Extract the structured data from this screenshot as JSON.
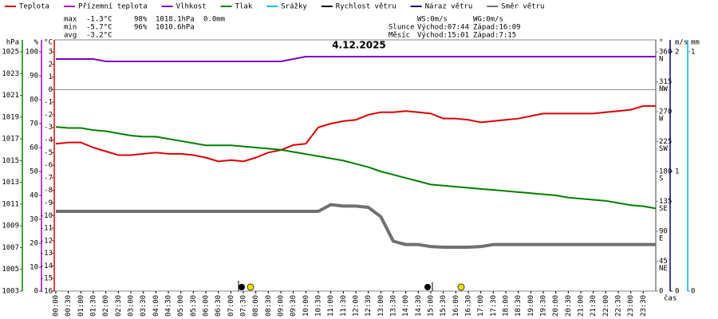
{
  "chart_data": {
    "type": "line",
    "title": "4.12.2025",
    "x_label": "čas",
    "stats": [
      {
        "label": "max",
        "temp": "-1.3°C",
        "hum": "98%",
        "pres": "1018.1hPa",
        "rain": "0.0mm"
      },
      {
        "label": "min",
        "temp": "-5.7°C",
        "hum": "96%",
        "pres": "1010.6hPa"
      },
      {
        "label": "avg",
        "temp": "-3.2°C"
      }
    ],
    "wind": {
      "ws": "WS:0m/s",
      "wg": "WG:0m/s"
    },
    "sun": {
      "label": "Slunce",
      "rise": "Východ:07:44",
      "set": "Západ:16:09"
    },
    "moon": {
      "label": "Měsíc",
      "rise": "Východ:15:01",
      "set": "Západ:7:15"
    },
    "xlim": [
      0,
      24
    ],
    "x": [
      0,
      0.5,
      1,
      1.5,
      2,
      2.5,
      3,
      3.5,
      4,
      4.5,
      5,
      5.5,
      6,
      6.5,
      7,
      7.5,
      8,
      8.5,
      9,
      9.5,
      10,
      10.5,
      11,
      11.5,
      12,
      12.5,
      13,
      13.5,
      14,
      14.5,
      15,
      15.5,
      16,
      16.5,
      17,
      17.5,
      18,
      18.5,
      19,
      19.5,
      20,
      20.5,
      21,
      21.5,
      22,
      22.5,
      23,
      23.5,
      24
    ],
    "xticks": [
      {
        "value": 0,
        "label": "00:00"
      },
      {
        "value": 0.5,
        "label": "00:30"
      },
      {
        "value": 1,
        "label": "01:00"
      },
      {
        "value": 1.5,
        "label": "01:30"
      },
      {
        "value": 2,
        "label": "02:00"
      },
      {
        "value": 2.5,
        "label": "02:30"
      },
      {
        "value": 3,
        "label": "03:00"
      },
      {
        "value": 3.5,
        "label": "03:30"
      },
      {
        "value": 4,
        "label": "04:00"
      },
      {
        "value": 4.5,
        "label": "04:30"
      },
      {
        "value": 5,
        "label": "05:00"
      },
      {
        "value": 5.5,
        "label": "05:30"
      },
      {
        "value": 6,
        "label": "06:00"
      },
      {
        "value": 6.5,
        "label": "06:30"
      },
      {
        "value": 7,
        "label": "07:00"
      },
      {
        "value": 7.5,
        "label": "07:30"
      },
      {
        "value": 8,
        "label": "08:00"
      },
      {
        "value": 8.5,
        "label": "08:30"
      },
      {
        "value": 9,
        "label": "09:00"
      },
      {
        "value": 9.5,
        "label": "09:30"
      },
      {
        "value": 10,
        "label": "10:00"
      },
      {
        "value": 10.5,
        "label": "10:30"
      },
      {
        "value": 11,
        "label": "11:00"
      },
      {
        "value": 11.5,
        "label": "11:30"
      },
      {
        "value": 12,
        "label": "12:00"
      },
      {
        "value": 12.5,
        "label": "12:30"
      },
      {
        "value": 13,
        "label": "13:00"
      },
      {
        "value": 13.5,
        "label": "13:30"
      },
      {
        "value": 14,
        "label": "14:00"
      },
      {
        "value": 14.5,
        "label": "14:30"
      },
      {
        "value": 15,
        "label": "15:00"
      },
      {
        "value": 15.5,
        "label": "15:30"
      },
      {
        "value": 16,
        "label": "16:00"
      },
      {
        "value": 16.5,
        "label": "16:30"
      },
      {
        "value": 17,
        "label": "17:00"
      },
      {
        "value": 17.5,
        "label": "17:30"
      },
      {
        "value": 18,
        "label": "18:00"
      },
      {
        "value": 18.5,
        "label": "18:30"
      },
      {
        "value": 19,
        "label": "19:00"
      },
      {
        "value": 19.5,
        "label": "19:30"
      },
      {
        "value": 20,
        "label": "20:00"
      },
      {
        "value": 20.5,
        "label": "20:30"
      },
      {
        "value": 21,
        "label": "21:00"
      },
      {
        "value": 21.5,
        "label": "21:30"
      },
      {
        "value": 22,
        "label": "22:00"
      },
      {
        "value": 22.5,
        "label": "22:30"
      },
      {
        "value": 23,
        "label": "23:00"
      },
      {
        "value": 23.5,
        "label": "23:30"
      }
    ],
    "axes": {
      "pres": {
        "label": "hPa",
        "color": "#008000",
        "side": "left",
        "lim": [
          1003,
          1025
        ],
        "ticks": [
          1003,
          1005,
          1007,
          1009,
          1011,
          1013,
          1015,
          1017,
          1019,
          1021,
          1023,
          1025
        ]
      },
      "hum": {
        "label": "%",
        "color": "#a000c0",
        "side": "left",
        "lim": [
          0,
          100
        ],
        "ticks": [
          0,
          10,
          20,
          30,
          40,
          50,
          60,
          70,
          80,
          90,
          100
        ]
      },
      "temp": {
        "label": "°C",
        "color": "#e00000",
        "side": "left",
        "lim": [
          -16,
          3
        ],
        "ticks": [
          -16,
          -15,
          -14,
          -13,
          -12,
          -11,
          -10,
          -9,
          -8,
          -7,
          -6,
          -5,
          -4,
          -3,
          -2,
          -1,
          0,
          1,
          2,
          3
        ],
        "zero_line": true
      },
      "dir": {
        "label": "°",
        "color": "#808080",
        "side": "right",
        "lim": [
          0,
          360
        ],
        "ticks": [
          0,
          45,
          90,
          135,
          180,
          225,
          270,
          315,
          360
        ],
        "compass": [
          {
            "value": 45,
            "label": "NE"
          },
          {
            "value": 90,
            "label": "E"
          },
          {
            "value": 135,
            "label": "SE"
          },
          {
            "value": 180,
            "label": "S"
          },
          {
            "value": 225,
            "label": "SW"
          },
          {
            "value": 270,
            "label": "W"
          },
          {
            "value": 315,
            "label": "NW"
          },
          {
            "value": 360,
            "label": "N"
          }
        ]
      },
      "wind": {
        "label": "m/s",
        "color": "#000080",
        "side": "right",
        "lim": [
          0,
          2
        ],
        "ticks": [
          0,
          1,
          2
        ]
      },
      "rain": {
        "label": "mm",
        "color": "#00b0f0",
        "side": "right",
        "lim": [
          0,
          1
        ],
        "ticks": [
          0,
          1
        ]
      }
    },
    "series": [
      {
        "name": "Teplota",
        "color": "#e00000",
        "axis": "temp",
        "values": [
          -4.3,
          -4.2,
          -4.2,
          -4.6,
          -4.9,
          -5.2,
          -5.2,
          -5.1,
          -5.0,
          -5.1,
          -5.1,
          -5.2,
          -5.4,
          -5.7,
          -5.6,
          -5.7,
          -5.4,
          -5.0,
          -4.8,
          -4.4,
          -4.3,
          -3.0,
          -2.7,
          -2.5,
          -2.4,
          -2.0,
          -1.8,
          -1.8,
          -1.7,
          -1.8,
          -1.9,
          -2.3,
          -2.3,
          -2.4,
          -2.6,
          -2.5,
          -2.4,
          -2.3,
          -2.1,
          -1.9,
          -1.9,
          -1.9,
          -1.9,
          -1.9,
          -1.8,
          -1.7,
          -1.6,
          -1.3,
          -1.3
        ]
      },
      {
        "name": "Přízemní teplota",
        "color": "#c000c0"
      },
      {
        "name": "Vlhkost",
        "color": "#8000c0",
        "axis": "hum",
        "values": [
          97,
          97,
          97,
          97,
          96,
          96,
          96,
          96,
          96,
          96,
          96,
          96,
          96,
          96,
          96,
          96,
          96,
          96,
          96,
          97,
          98,
          98,
          98,
          98,
          98,
          98,
          98,
          98,
          98,
          98,
          98,
          98,
          98,
          98,
          98,
          98,
          98,
          98,
          98,
          98,
          98,
          98,
          98,
          98,
          98,
          98,
          98,
          98,
          98
        ]
      },
      {
        "name": "Tlak",
        "color": "#008000",
        "axis": "pres",
        "values": [
          1018.1,
          1018.0,
          1018.0,
          1017.8,
          1017.7,
          1017.5,
          1017.3,
          1017.2,
          1017.2,
          1017.0,
          1016.8,
          1016.6,
          1016.4,
          1016.4,
          1016.4,
          1016.3,
          1016.2,
          1016.1,
          1016.0,
          1015.8,
          1015.6,
          1015.4,
          1015.2,
          1015.0,
          1014.7,
          1014.4,
          1014.0,
          1013.7,
          1013.4,
          1013.1,
          1012.8,
          1012.7,
          1012.6,
          1012.5,
          1012.4,
          1012.3,
          1012.2,
          1012.1,
          1012.0,
          1011.9,
          1011.8,
          1011.6,
          1011.5,
          1011.4,
          1011.3,
          1011.1,
          1010.9,
          1010.8,
          1010.6
        ]
      },
      {
        "name": "Srážky",
        "color": "#00c0ff"
      },
      {
        "name": "Rychlost větru",
        "color": "#000000"
      },
      {
        "name": "Náraz větru",
        "color": "#000080"
      },
      {
        "name": "Směr větru",
        "color": "#707070",
        "axis": "dir",
        "width": 4,
        "values": [
          120,
          120,
          120,
          120,
          120,
          120,
          120,
          120,
          120,
          120,
          120,
          120,
          120,
          120,
          120,
          120,
          120,
          120,
          120,
          120,
          120,
          120,
          130,
          128,
          128,
          126,
          112,
          75,
          70,
          70,
          67,
          66,
          66,
          66,
          67,
          70,
          70,
          70,
          70,
          70,
          70,
          70,
          70,
          70,
          70,
          70,
          70,
          70,
          70
        ]
      }
    ]
  }
}
